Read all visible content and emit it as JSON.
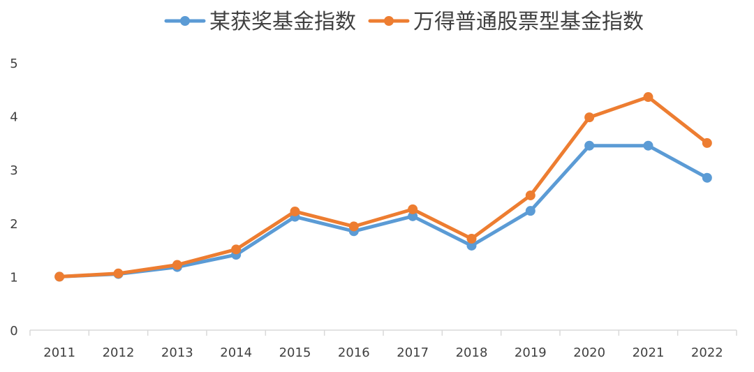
{
  "chart_data": {
    "type": "line",
    "categories": [
      "2011",
      "2012",
      "2013",
      "2014",
      "2015",
      "2016",
      "2017",
      "2018",
      "2019",
      "2020",
      "2021",
      "2022"
    ],
    "series": [
      {
        "name": "某获奖基金指数",
        "color": "#5B9BD5",
        "values": [
          1.0,
          1.05,
          1.18,
          1.41,
          2.12,
          1.85,
          2.13,
          1.58,
          2.23,
          3.45,
          3.45,
          2.85
        ]
      },
      {
        "name": "万得普通股票型基金指数",
        "color": "#ED7D31",
        "values": [
          1.0,
          1.06,
          1.22,
          1.51,
          2.22,
          1.94,
          2.26,
          1.71,
          2.52,
          3.98,
          4.36,
          3.5
        ]
      }
    ],
    "ylim": [
      0,
      5
    ],
    "yticks": [
      "0",
      "1",
      "2",
      "3",
      "4",
      "5"
    ],
    "grid": false,
    "legend_position": "top"
  }
}
